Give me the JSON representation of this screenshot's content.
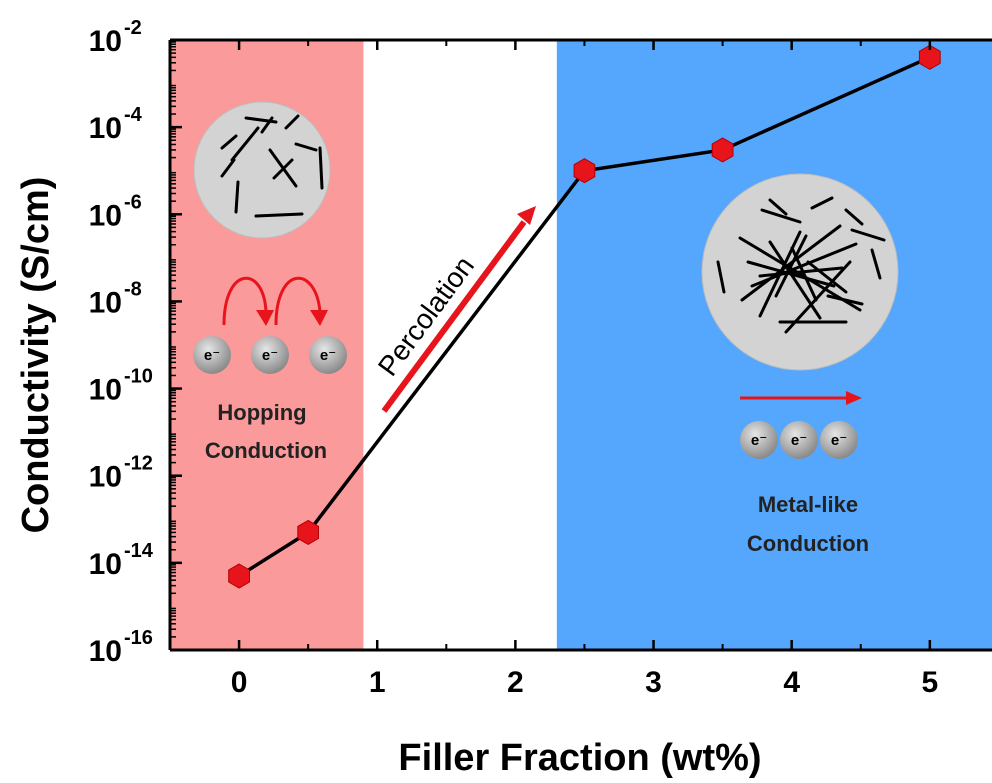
{
  "chart_data": {
    "type": "line",
    "xlabel": "Filler Fraction (wt%)",
    "ylabel": "Conductivity (S/cm)",
    "x_ticks": [
      0,
      1,
      2,
      3,
      4,
      5
    ],
    "y_scale": "log",
    "y_tick_exponents": [
      -16,
      -14,
      -12,
      -10,
      -8,
      -6,
      -4,
      -2
    ],
    "y_tick_base": "10",
    "xlim": [
      -0.5,
      5.45
    ],
    "ylim": [
      1e-16,
      0.01
    ],
    "series": [
      {
        "marker": "hexagon",
        "marker_color": "#e8141b",
        "line_color": "#000000",
        "points": [
          {
            "x": 0,
            "y": 5e-15
          },
          {
            "x": 0.5,
            "y": 5e-14
          },
          {
            "x": 2.5,
            "y": 1e-05
          },
          {
            "x": 3.5,
            "y": 3e-05
          },
          {
            "x": 5,
            "y": 0.004
          }
        ]
      }
    ],
    "regions": [
      {
        "x_from": -0.5,
        "x_to": 0.9,
        "color": "#fb9a9a",
        "label_lines": [
          "Hopping",
          "Conduction"
        ]
      },
      {
        "x_from": 2.3,
        "x_to": 5.45,
        "color": "#55a7fd",
        "label_lines": [
          "Metal-like",
          "Conduction"
        ]
      }
    ],
    "annotations": {
      "percolation_text": "Percolation",
      "electron_label": "e⁻",
      "arrow_color": "#e8141b"
    },
    "grid": false
  }
}
